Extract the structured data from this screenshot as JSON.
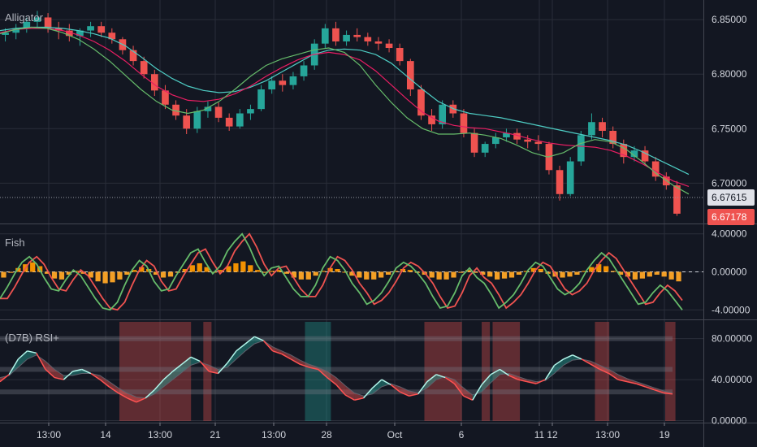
{
  "chart_data": {
    "type": "candlestick",
    "x_ticks": [
      "13:00",
      "14",
      "13:00",
      "21",
      "13:00",
      "28",
      "Oct",
      "6",
      "11",
      "12",
      "13:00",
      "19"
    ],
    "panels": [
      {
        "title": "Alligator",
        "type": "candlestick",
        "y_ticks": [
          "6.85000",
          "6.80000",
          "6.75000",
          "6.70000"
        ],
        "ylim": [
          6.663,
          6.868
        ],
        "price_labels": [
          {
            "value": "6.67615",
            "color": "#dfe1e8",
            "text_color": "#131722"
          },
          {
            "value": "6.67178",
            "color": "#ef5350",
            "text_color": "#ffffff"
          }
        ],
        "candles": [
          [
            6.836,
            6.842,
            6.83,
            6.838
          ],
          [
            6.838,
            6.846,
            6.832,
            6.842
          ],
          [
            6.842,
            6.852,
            6.838,
            6.848
          ],
          [
            6.848,
            6.858,
            6.842,
            6.852
          ],
          [
            6.852,
            6.856,
            6.838,
            6.842
          ],
          [
            6.842,
            6.848,
            6.832,
            6.84
          ],
          [
            6.84,
            6.846,
            6.83,
            6.835
          ],
          [
            6.835,
            6.842,
            6.826,
            6.84
          ],
          [
            6.84,
            6.848,
            6.834,
            6.844
          ],
          [
            6.844,
            6.848,
            6.834,
            6.838
          ],
          [
            6.838,
            6.842,
            6.828,
            6.832
          ],
          [
            6.832,
            6.834,
            6.818,
            6.822
          ],
          [
            6.822,
            6.826,
            6.808,
            6.812
          ],
          [
            6.812,
            6.816,
            6.796,
            6.8
          ],
          [
            6.8,
            6.804,
            6.78,
            6.785
          ],
          [
            6.785,
            6.79,
            6.768,
            6.772
          ],
          [
            6.772,
            6.776,
            6.758,
            6.762
          ],
          [
            6.762,
            6.768,
            6.745,
            6.75
          ],
          [
            6.75,
            6.77,
            6.746,
            6.766
          ],
          [
            6.766,
            6.775,
            6.76,
            6.77
          ],
          [
            6.77,
            6.774,
            6.756,
            6.76
          ],
          [
            6.76,
            6.764,
            6.748,
            6.752
          ],
          [
            6.752,
            6.768,
            6.75,
            6.764
          ],
          [
            6.764,
            6.772,
            6.758,
            6.768
          ],
          [
            6.768,
            6.79,
            6.766,
            6.786
          ],
          [
            6.786,
            6.798,
            6.782,
            6.794
          ],
          [
            6.794,
            6.8,
            6.784,
            6.79
          ],
          [
            6.79,
            6.802,
            6.786,
            6.798
          ],
          [
            6.798,
            6.812,
            6.794,
            6.808
          ],
          [
            6.808,
            6.832,
            6.804,
            6.828
          ],
          [
            6.828,
            6.846,
            6.824,
            6.842
          ],
          [
            6.842,
            6.848,
            6.826,
            6.83
          ],
          [
            6.83,
            6.84,
            6.826,
            6.836
          ],
          [
            6.836,
            6.842,
            6.83,
            6.834
          ],
          [
            6.834,
            6.838,
            6.826,
            6.83
          ],
          [
            6.83,
            6.834,
            6.822,
            6.828
          ],
          [
            6.828,
            6.832,
            6.82,
            6.824
          ],
          [
            6.824,
            6.828,
            6.808,
            6.812
          ],
          [
            6.812,
            6.814,
            6.78,
            6.786
          ],
          [
            6.786,
            6.79,
            6.758,
            6.762
          ],
          [
            6.762,
            6.768,
            6.748,
            6.754
          ],
          [
            6.754,
            6.776,
            6.75,
            6.772
          ],
          [
            6.772,
            6.776,
            6.76,
            6.764
          ],
          [
            6.764,
            6.768,
            6.742,
            6.746
          ],
          [
            6.746,
            6.75,
            6.724,
            6.728
          ],
          [
            6.728,
            6.738,
            6.724,
            6.736
          ],
          [
            6.736,
            6.746,
            6.732,
            6.742
          ],
          [
            6.742,
            6.75,
            6.738,
            6.746
          ],
          [
            6.746,
            6.75,
            6.736,
            6.74
          ],
          [
            6.74,
            6.744,
            6.732,
            6.738
          ],
          [
            6.738,
            6.744,
            6.73,
            6.736
          ],
          [
            6.736,
            6.738,
            6.708,
            6.712
          ],
          [
            6.712,
            6.716,
            6.684,
            6.69
          ],
          [
            6.69,
            6.724,
            6.688,
            6.72
          ],
          [
            6.72,
            6.748,
            6.716,
            6.744
          ],
          [
            6.744,
            6.764,
            6.74,
            6.756
          ],
          [
            6.756,
            6.76,
            6.742,
            6.748
          ],
          [
            6.748,
            6.752,
            6.732,
            6.736
          ],
          [
            6.736,
            6.74,
            6.718,
            6.724
          ],
          [
            6.724,
            6.734,
            6.72,
            6.73
          ],
          [
            6.73,
            6.734,
            6.716,
            6.72
          ],
          [
            6.72,
            6.724,
            6.702,
            6.706
          ],
          [
            6.706,
            6.71,
            6.694,
            6.698
          ],
          [
            6.698,
            6.702,
            6.67,
            6.672
          ]
        ],
        "series": [
          {
            "name": "",
            "color": "#4ecdc4",
            "values": [
              6.84,
              6.842,
              6.843,
              6.843,
              6.842,
              6.84,
              6.837,
              6.833,
              6.826,
              6.816,
              6.805,
              6.796,
              6.789,
              6.785,
              6.783,
              6.784,
              6.788,
              6.794,
              6.802,
              6.81,
              6.818,
              6.822,
              6.823,
              6.822,
              6.818,
              6.81,
              6.798,
              6.786,
              6.775,
              6.768,
              6.764,
              6.762,
              6.76,
              6.757,
              6.754,
              6.751,
              6.748,
              6.745,
              6.742,
              6.739,
              6.735,
              6.729,
              6.722,
              6.715,
              6.708
            ]
          },
          {
            "name": "",
            "color": "#e91e63",
            "values": [
              6.838,
              6.841,
              6.842,
              6.842,
              6.84,
              6.836,
              6.83,
              6.822,
              6.812,
              6.8,
              6.789,
              6.781,
              6.776,
              6.775,
              6.777,
              6.782,
              6.789,
              6.798,
              6.806,
              6.813,
              6.818,
              6.82,
              6.818,
              6.813,
              6.803,
              6.79,
              6.777,
              6.765,
              6.757,
              6.753,
              6.751,
              6.75,
              6.747,
              6.744,
              6.74,
              6.737,
              6.735,
              6.734,
              6.733,
              6.73,
              6.725,
              6.718,
              6.71,
              6.702,
              6.697
            ]
          },
          {
            "name": "",
            "color": "#66bb6a",
            "values": [
              6.837,
              6.841,
              6.843,
              6.842,
              6.838,
              6.832,
              6.823,
              6.812,
              6.799,
              6.786,
              6.775,
              6.767,
              6.764,
              6.767,
              6.775,
              6.786,
              6.798,
              6.808,
              6.814,
              6.818,
              6.822,
              6.824,
              6.82,
              6.808,
              6.79,
              6.774,
              6.76,
              6.75,
              6.745,
              6.745,
              6.746,
              6.744,
              6.741,
              6.735,
              6.728,
              6.724,
              6.728,
              6.736,
              6.74,
              6.738,
              6.731,
              6.72,
              6.708,
              6.698,
              6.69
            ]
          }
        ]
      },
      {
        "title": "Fish",
        "type": "oscillator",
        "y_ticks": [
          "4.00000",
          "0.00000",
          "-4.00000"
        ],
        "ylim": [
          -5.0,
          5.0
        ],
        "fisher": [
          -2.8,
          -1.6,
          -0.2,
          1.0,
          1.6,
          0.8,
          -0.6,
          -1.8,
          -2.0,
          -0.8,
          0.2,
          -0.4,
          -1.6,
          -2.8,
          -3.8,
          -4.0,
          -3.2,
          -1.4,
          0.2,
          1.2,
          0.6,
          -1.0,
          -2.0,
          -1.8,
          -0.4,
          0.8,
          2.0,
          2.4,
          1.0,
          -0.2,
          0.6,
          2.2,
          3.2,
          4.0,
          2.6,
          0.8,
          -0.4,
          0.4,
          0.6,
          -0.6,
          -1.8,
          -2.6,
          -2.6,
          -1.4,
          0.4,
          1.6,
          1.2,
          0.2,
          -1.2,
          -2.2,
          -3.4,
          -3.0,
          -2.2,
          -1.0,
          0.4,
          1.0,
          0.6,
          -0.2,
          -1.2,
          -2.6,
          -3.8,
          -3.6,
          -2.2,
          -0.4,
          0.4,
          -0.6,
          -1.2,
          -2.4,
          -3.8,
          -3.2,
          -2.4,
          -1.2,
          0.2,
          1.0,
          0.6,
          -0.6,
          -1.8,
          -2.4,
          -2.0,
          -1.2,
          0.2,
          1.2,
          2.0,
          1.4,
          0.2,
          -1.0,
          -2.2,
          -3.4,
          -3.2,
          -2.2,
          -1.4,
          -2.0,
          -3.0,
          -4.0
        ],
        "hist": [
          -0.6,
          -0.1,
          0.4,
          0.8,
          1.0,
          0.6,
          -0.2,
          -0.7,
          -0.8,
          -0.3,
          0.1,
          -0.2,
          -0.6,
          -1.0,
          -1.2,
          -1.1,
          -0.8,
          -0.3,
          0.2,
          0.5,
          0.3,
          -0.3,
          -0.6,
          -0.5,
          -0.1,
          0.3,
          0.7,
          0.9,
          0.5,
          0.0,
          0.2,
          0.6,
          0.9,
          1.1,
          0.7,
          0.2,
          -0.1,
          0.1,
          0.2,
          -0.2,
          -0.6,
          -0.8,
          -0.8,
          -0.4,
          0.1,
          0.4,
          0.3,
          0.0,
          -0.4,
          -0.6,
          -0.8,
          -0.8,
          -0.6,
          -0.3,
          0.1,
          0.3,
          0.2,
          -0.1,
          -0.3,
          -0.6,
          -0.8,
          -0.8,
          -0.6,
          -0.1,
          0.2,
          -0.1,
          -0.3,
          -0.5,
          -0.8,
          -0.7,
          -0.6,
          -0.3,
          0.1,
          0.4,
          0.3,
          -0.2,
          -0.5,
          -0.6,
          -0.5,
          -0.3,
          0.1,
          0.5,
          0.8,
          0.6,
          0.1,
          -0.3,
          -0.5,
          -0.8,
          -0.7,
          -0.5,
          -0.3,
          -0.5,
          -0.8,
          -1.0
        ],
        "hist_colors": {
          "up": "#ff9800",
          "down": "#ffa726"
        }
      },
      {
        "title": "(D7B) RSI+",
        "type": "oscillator",
        "y_ticks": [
          "80.00000",
          "40.00000",
          "0.00000"
        ],
        "ylim": [
          -2,
          98
        ],
        "bands": [
          80,
          50,
          28
        ],
        "rsi": [
          38,
          45,
          60,
          68,
          66,
          50,
          42,
          40,
          48,
          50,
          46,
          40,
          33,
          27,
          22,
          18,
          22,
          30,
          40,
          48,
          55,
          62,
          58,
          48,
          46,
          56,
          68,
          75,
          82,
          78,
          68,
          65,
          60,
          55,
          52,
          50,
          42,
          35,
          25,
          20,
          22,
          32,
          40,
          35,
          28,
          24,
          26,
          38,
          45,
          42,
          36,
          24,
          20,
          35,
          45,
          50,
          44,
          40,
          38,
          36,
          40,
          54,
          60,
          64,
          60,
          55,
          50,
          46,
          40,
          38,
          36,
          33,
          30,
          27,
          26
        ],
        "rsi_ma": [
          42,
          44,
          52,
          60,
          64,
          58,
          50,
          44,
          44,
          46,
          46,
          44,
          38,
          32,
          27,
          23,
          22,
          26,
          33,
          40,
          47,
          54,
          57,
          54,
          50,
          52,
          60,
          68,
          75,
          78,
          72,
          68,
          64,
          59,
          55,
          52,
          48,
          42,
          34,
          27,
          24,
          26,
          33,
          36,
          33,
          29,
          27,
          32,
          40,
          43,
          40,
          32,
          25,
          28,
          37,
          45,
          46,
          43,
          40,
          38,
          39,
          46,
          54,
          59,
          60,
          58,
          54,
          50,
          45,
          41,
          38,
          35,
          32,
          29,
          27
        ],
        "zones": [
          {
            "from": 0.175,
            "to": 0.28,
            "color": "#ef5350"
          },
          {
            "from": 0.298,
            "to": 0.31,
            "color": "#ef5350"
          },
          {
            "from": 0.447,
            "to": 0.485,
            "color": "#26a69a"
          },
          {
            "from": 0.622,
            "to": 0.677,
            "color": "#ef5350"
          },
          {
            "from": 0.706,
            "to": 0.718,
            "color": "#ef5350"
          },
          {
            "from": 0.722,
            "to": 0.762,
            "color": "#ef5350"
          },
          {
            "from": 0.872,
            "to": 0.893,
            "color": "#ef5350"
          },
          {
            "from": 0.975,
            "to": 0.99,
            "color": "#ef5350"
          }
        ]
      }
    ],
    "grid": true,
    "colors": {
      "bg": "#131722",
      "grid": "#2a2e39",
      "up": "#26a69a",
      "down": "#ef5350",
      "text": "#d1d4dc"
    }
  }
}
